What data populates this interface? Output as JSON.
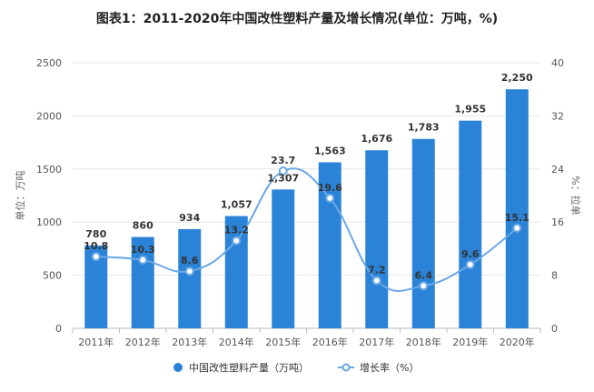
{
  "chart_data": {
    "type": "bar",
    "title": "图表1：2011-2020年中国改性塑料产量及增长情况(单位：万吨，%)",
    "categories": [
      "2011年",
      "2012年",
      "2013年",
      "2014年",
      "2015年",
      "2016年",
      "2017年",
      "2018年",
      "2019年",
      "2020年"
    ],
    "series": [
      {
        "name": "中国改性塑料产量（万吨）",
        "type": "bar",
        "axis": "left",
        "values": [
          780,
          860,
          934,
          1057,
          1307,
          1563,
          1676,
          1783,
          1955,
          2250
        ],
        "labels": [
          "780",
          "860",
          "934",
          "1,057",
          "1,307",
          "1,563",
          "1,676",
          "1,783",
          "1,955",
          "2,250"
        ],
        "color": "#2b83d8"
      },
      {
        "name": "增长率（%）",
        "type": "line",
        "axis": "right",
        "values": [
          10.8,
          10.3,
          8.6,
          13.2,
          23.7,
          19.6,
          7.2,
          6.4,
          9.6,
          15.1
        ],
        "labels": [
          "10.8",
          "10.3",
          "8.6",
          "13.2",
          "23.7",
          "19.6",
          "7.2",
          "6.4",
          "9.6",
          "15.1"
        ],
        "color": "#6aa8e6"
      }
    ],
    "ylabel": "单位：万吨",
    "y2label": "%：拉单",
    "ylim": [
      0,
      2500
    ],
    "yticks": [
      "0",
      "500",
      "1000",
      "1500",
      "2000",
      "2500"
    ],
    "y2lim": [
      0,
      40
    ],
    "y2ticks": [
      "0",
      "8",
      "16",
      "24",
      "32",
      "40"
    ],
    "grid": true,
    "legend_position": "bottom"
  }
}
